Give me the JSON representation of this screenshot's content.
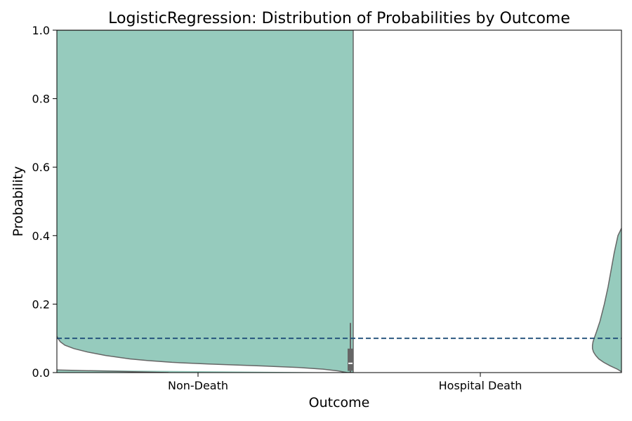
{
  "chart_data": {
    "type": "violin",
    "title": "LogisticRegression: Distribution of Probabilities by Outcome",
    "xlabel": "Outcome",
    "ylabel": "Probability",
    "categories": [
      "Non-Death",
      "Hospital Death"
    ],
    "ylim": [
      0,
      1
    ],
    "yticks": [
      0.0,
      0.2,
      0.4,
      0.6,
      0.8,
      1.0
    ],
    "ytick_labels": [
      "0.0",
      "0.2",
      "0.4",
      "0.6",
      "0.8",
      "1.0"
    ],
    "threshold": 0.1,
    "grid": false,
    "colors": {
      "violin_fill": "#96cbbd",
      "violin_edge": "#666666",
      "box": "#666666",
      "median": "#ffffff",
      "threshold_line": "#1f4e79"
    },
    "violins": [
      {
        "category": "Non-Death",
        "side": "right",
        "half_width": [
          [
            0.0,
            0.02
          ],
          [
            0.005,
            0.05
          ],
          [
            0.01,
            0.1
          ],
          [
            0.015,
            0.18
          ],
          [
            0.02,
            0.32
          ],
          [
            0.025,
            0.48
          ],
          [
            0.03,
            0.6
          ],
          [
            0.035,
            0.68
          ],
          [
            0.04,
            0.74
          ],
          [
            0.05,
            0.82
          ],
          [
            0.06,
            0.88
          ],
          [
            0.07,
            0.925
          ],
          [
            0.08,
            0.955
          ],
          [
            0.09,
            0.97
          ],
          [
            0.1,
            0.978
          ],
          [
            0.12,
            0.99
          ],
          [
            0.14,
            1.0
          ],
          [
            0.16,
            1.0
          ],
          [
            0.2,
            0.995
          ],
          [
            0.27,
            0.993
          ],
          [
            0.35,
            0.996
          ],
          [
            0.5,
            1.0
          ],
          [
            0.7,
            1.0
          ],
          [
            1.0,
            1.0
          ]
        ],
        "left_edge": [
          [
            0.0,
            0.0
          ],
          [
            0.003,
            0.0
          ],
          [
            0.008,
            0.0
          ]
        ],
        "box": {
          "q1": 0.005,
          "median": 0.027,
          "q3": 0.07,
          "whisker_low": 0.0,
          "whisker_high": 0.145
        }
      },
      {
        "category": "Hospital Death",
        "side": "left",
        "half_width": [
          [
            0.0,
            0.0
          ],
          [
            0.01,
            0.18
          ],
          [
            0.02,
            0.42
          ],
          [
            0.03,
            0.62
          ],
          [
            0.04,
            0.78
          ],
          [
            0.05,
            0.88
          ],
          [
            0.06,
            0.95
          ],
          [
            0.07,
            0.985
          ],
          [
            0.08,
            0.985
          ],
          [
            0.09,
            0.965
          ],
          [
            0.1,
            0.93
          ],
          [
            0.12,
            0.85
          ],
          [
            0.15,
            0.74
          ],
          [
            0.2,
            0.6
          ],
          [
            0.25,
            0.48
          ],
          [
            0.3,
            0.38
          ],
          [
            0.35,
            0.28
          ],
          [
            0.4,
            0.16
          ],
          [
            0.43,
            0.0
          ]
        ]
      }
    ]
  }
}
